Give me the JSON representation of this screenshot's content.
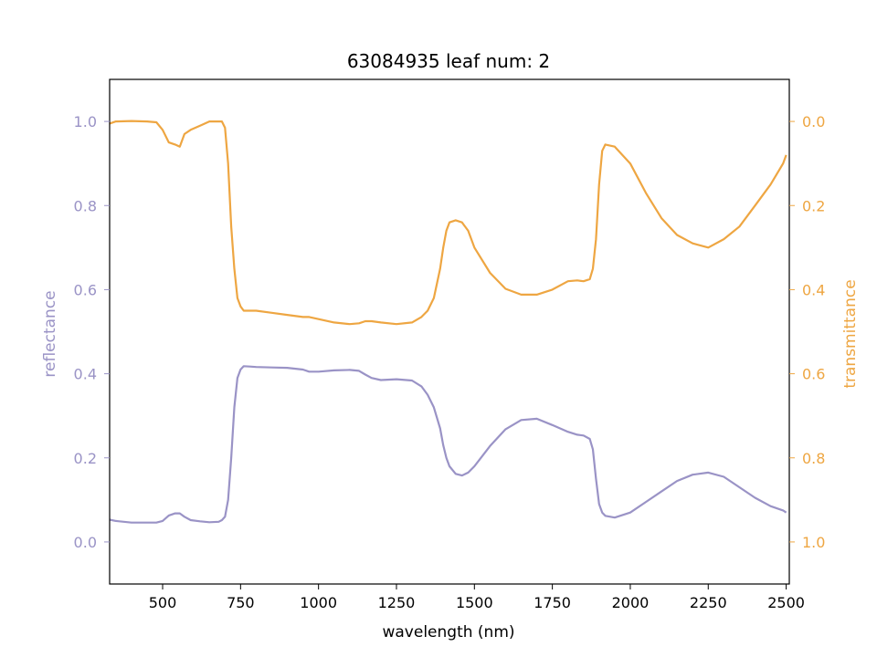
{
  "chart_data": {
    "type": "line",
    "title": "63084935 leaf num: 2",
    "xlabel": "wavelength (nm)",
    "ylabel_left": "reflectance",
    "ylabel_right": "transmittance",
    "xlim": [
      330,
      2510
    ],
    "ylim_left": [
      -0.1,
      1.1
    ],
    "ylim_right": [
      1.1,
      -0.1
    ],
    "right_axis_inverted": true,
    "grid": false,
    "legend": "none",
    "x_ticks": [
      {
        "value": 500,
        "label": "500"
      },
      {
        "value": 750,
        "label": "750"
      },
      {
        "value": 1000,
        "label": "1000"
      },
      {
        "value": 1250,
        "label": "1250"
      },
      {
        "value": 1500,
        "label": "1500"
      },
      {
        "value": 1750,
        "label": "1750"
      },
      {
        "value": 2000,
        "label": "2000"
      },
      {
        "value": 2250,
        "label": "2250"
      },
      {
        "value": 2500,
        "label": "2500"
      }
    ],
    "y_ticks_left": [
      {
        "value": 0.0,
        "label": "0.0"
      },
      {
        "value": 0.2,
        "label": "0.2"
      },
      {
        "value": 0.4,
        "label": "0.4"
      },
      {
        "value": 0.6,
        "label": "0.6"
      },
      {
        "value": 0.8,
        "label": "0.8"
      },
      {
        "value": 1.0,
        "label": "1.0"
      }
    ],
    "y_ticks_right": [
      {
        "value": 0.0,
        "label": "0.0"
      },
      {
        "value": 0.2,
        "label": "0.2"
      },
      {
        "value": 0.4,
        "label": "0.4"
      },
      {
        "value": 0.6,
        "label": "0.6"
      },
      {
        "value": 0.8,
        "label": "0.8"
      },
      {
        "value": 1.0,
        "label": "1.0"
      }
    ],
    "colors": {
      "reflectance": "#9a93c6",
      "transmittance": "#eea642",
      "axis": "#000000"
    },
    "series": [
      {
        "axis": "left",
        "color": "#9a93c6",
        "x": [
          330,
          350,
          400,
          450,
          480,
          500,
          520,
          540,
          555,
          570,
          590,
          620,
          650,
          680,
          690,
          700,
          710,
          720,
          730,
          740,
          750,
          760,
          780,
          800,
          850,
          900,
          950,
          970,
          1000,
          1050,
          1100,
          1130,
          1150,
          1170,
          1200,
          1250,
          1300,
          1330,
          1350,
          1370,
          1390,
          1400,
          1410,
          1420,
          1440,
          1460,
          1480,
          1500,
          1550,
          1600,
          1650,
          1700,
          1750,
          1800,
          1830,
          1850,
          1870,
          1880,
          1890,
          1900,
          1910,
          1920,
          1950,
          2000,
          2050,
          2100,
          2150,
          2200,
          2250,
          2300,
          2350,
          2400,
          2450,
          2490,
          2500
        ],
        "y": [
          0.053,
          0.05,
          0.046,
          0.046,
          0.046,
          0.05,
          0.063,
          0.068,
          0.068,
          0.06,
          0.052,
          0.049,
          0.047,
          0.048,
          0.052,
          0.06,
          0.1,
          0.2,
          0.32,
          0.39,
          0.41,
          0.418,
          0.417,
          0.416,
          0.415,
          0.414,
          0.41,
          0.405,
          0.405,
          0.408,
          0.409,
          0.407,
          0.398,
          0.39,
          0.385,
          0.387,
          0.384,
          0.37,
          0.35,
          0.32,
          0.27,
          0.23,
          0.2,
          0.18,
          0.162,
          0.158,
          0.165,
          0.18,
          0.228,
          0.268,
          0.29,
          0.293,
          0.278,
          0.262,
          0.255,
          0.253,
          0.245,
          0.22,
          0.15,
          0.09,
          0.07,
          0.062,
          0.058,
          0.07,
          0.095,
          0.12,
          0.145,
          0.16,
          0.165,
          0.155,
          0.13,
          0.105,
          0.085,
          0.075,
          0.07
        ]
      },
      {
        "axis": "right",
        "color": "#eea642",
        "x": [
          330,
          350,
          400,
          450,
          480,
          500,
          520,
          540,
          555,
          570,
          590,
          620,
          650,
          680,
          690,
          700,
          710,
          720,
          730,
          740,
          750,
          760,
          780,
          800,
          850,
          900,
          950,
          970,
          1000,
          1050,
          1100,
          1130,
          1150,
          1170,
          1200,
          1250,
          1300,
          1330,
          1350,
          1370,
          1390,
          1400,
          1410,
          1420,
          1440,
          1460,
          1480,
          1500,
          1550,
          1600,
          1650,
          1700,
          1750,
          1800,
          1830,
          1850,
          1870,
          1880,
          1890,
          1900,
          1910,
          1920,
          1950,
          2000,
          2050,
          2100,
          2150,
          2200,
          2250,
          2300,
          2350,
          2400,
          2450,
          2490,
          2500
        ],
        "y": [
          0.005,
          0.0,
          -0.001,
          0.0,
          0.002,
          0.02,
          0.05,
          0.055,
          0.06,
          0.03,
          0.02,
          0.01,
          0.0,
          0.0,
          0.0,
          0.015,
          0.1,
          0.25,
          0.35,
          0.42,
          0.44,
          0.45,
          0.45,
          0.45,
          0.455,
          0.46,
          0.465,
          0.465,
          0.47,
          0.478,
          0.482,
          0.48,
          0.475,
          0.475,
          0.478,
          0.482,
          0.478,
          0.465,
          0.45,
          0.42,
          0.35,
          0.3,
          0.26,
          0.24,
          0.235,
          0.24,
          0.26,
          0.3,
          0.36,
          0.398,
          0.412,
          0.412,
          0.4,
          0.38,
          0.378,
          0.38,
          0.375,
          0.35,
          0.28,
          0.15,
          0.07,
          0.055,
          0.06,
          0.1,
          0.17,
          0.23,
          0.27,
          0.29,
          0.3,
          0.28,
          0.25,
          0.2,
          0.15,
          0.1,
          0.08
        ]
      }
    ]
  }
}
